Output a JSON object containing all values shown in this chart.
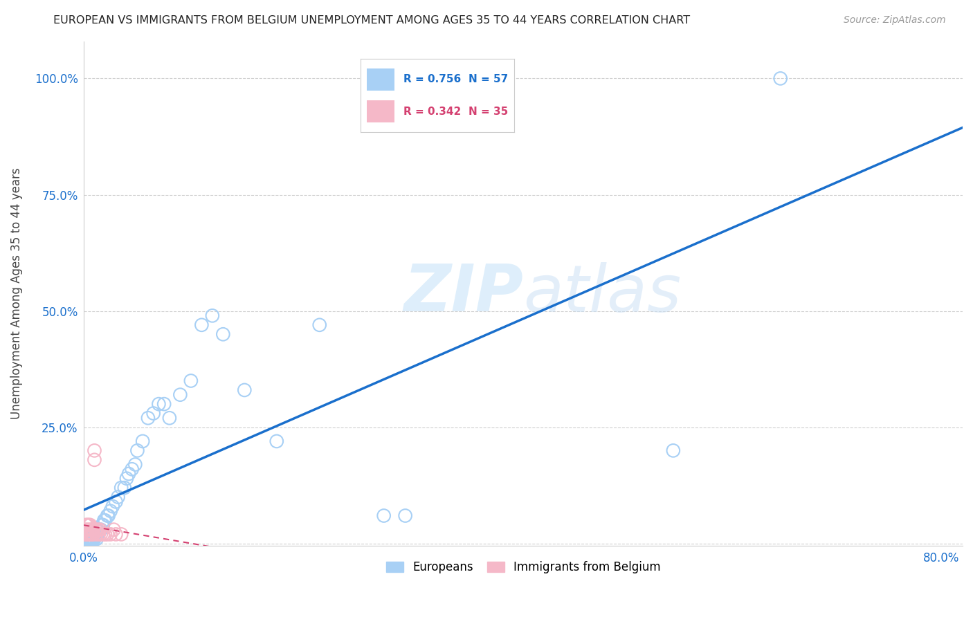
{
  "title": "EUROPEAN VS IMMIGRANTS FROM BELGIUM UNEMPLOYMENT AMONG AGES 35 TO 44 YEARS CORRELATION CHART",
  "source": "Source: ZipAtlas.com",
  "ylabel": "Unemployment Among Ages 35 to 44 years",
  "xlim": [
    0.0,
    0.82
  ],
  "ylim": [
    -0.005,
    1.08
  ],
  "xticks": [
    0.0,
    0.2,
    0.4,
    0.6,
    0.8
  ],
  "xticklabels": [
    "0.0%",
    "",
    "",
    "",
    "80.0%"
  ],
  "yticks": [
    0.0,
    0.25,
    0.5,
    0.75,
    1.0
  ],
  "yticklabels": [
    "",
    "25.0%",
    "50.0%",
    "75.0%",
    "100.0%"
  ],
  "watermark_zip": "ZIP",
  "watermark_atlas": "atlas",
  "legend_r1": "R = 0.756",
  "legend_n1": "N = 57",
  "legend_r2": "R = 0.342",
  "legend_n2": "N = 35",
  "blue_scatter_color": "#a8d0f5",
  "blue_line_color": "#1a6fcc",
  "pink_scatter_color": "#f5b8c8",
  "pink_line_color": "#d44070",
  "grid_color": "#d0d0d0",
  "bg_color": "#ffffff",
  "europeans_x": [
    0.001,
    0.002,
    0.002,
    0.003,
    0.003,
    0.004,
    0.004,
    0.005,
    0.005,
    0.006,
    0.006,
    0.007,
    0.007,
    0.008,
    0.009,
    0.01,
    0.01,
    0.011,
    0.012,
    0.013,
    0.015,
    0.016,
    0.017,
    0.018,
    0.019,
    0.02,
    0.022,
    0.023,
    0.025,
    0.027,
    0.03,
    0.032,
    0.035,
    0.038,
    0.04,
    0.042,
    0.045,
    0.048,
    0.05,
    0.055,
    0.06,
    0.065,
    0.07,
    0.075,
    0.08,
    0.09,
    0.1,
    0.11,
    0.12,
    0.13,
    0.15,
    0.18,
    0.22,
    0.28,
    0.3,
    0.55,
    0.65
  ],
  "europeans_y": [
    0.01,
    0.01,
    0.02,
    0.01,
    0.02,
    0.01,
    0.02,
    0.01,
    0.02,
    0.01,
    0.02,
    0.01,
    0.02,
    0.01,
    0.01,
    0.01,
    0.02,
    0.02,
    0.01,
    0.02,
    0.03,
    0.03,
    0.04,
    0.04,
    0.05,
    0.05,
    0.06,
    0.06,
    0.07,
    0.08,
    0.09,
    0.1,
    0.12,
    0.12,
    0.14,
    0.15,
    0.16,
    0.17,
    0.2,
    0.22,
    0.27,
    0.28,
    0.3,
    0.3,
    0.27,
    0.32,
    0.35,
    0.47,
    0.49,
    0.45,
    0.33,
    0.22,
    0.47,
    0.06,
    0.06,
    0.2,
    1.0
  ],
  "belgium_x": [
    0.001,
    0.001,
    0.002,
    0.002,
    0.003,
    0.003,
    0.003,
    0.004,
    0.004,
    0.005,
    0.005,
    0.005,
    0.006,
    0.006,
    0.007,
    0.007,
    0.008,
    0.008,
    0.009,
    0.009,
    0.01,
    0.01,
    0.011,
    0.012,
    0.013,
    0.014,
    0.015,
    0.016,
    0.018,
    0.02,
    0.022,
    0.025,
    0.028,
    0.03,
    0.035
  ],
  "belgium_y": [
    0.03,
    0.02,
    0.04,
    0.02,
    0.04,
    0.03,
    0.02,
    0.04,
    0.02,
    0.04,
    0.03,
    0.02,
    0.04,
    0.02,
    0.03,
    0.02,
    0.03,
    0.02,
    0.03,
    0.02,
    0.2,
    0.18,
    0.03,
    0.02,
    0.03,
    0.02,
    0.03,
    0.02,
    0.02,
    0.02,
    0.02,
    0.02,
    0.03,
    0.02,
    0.02
  ]
}
